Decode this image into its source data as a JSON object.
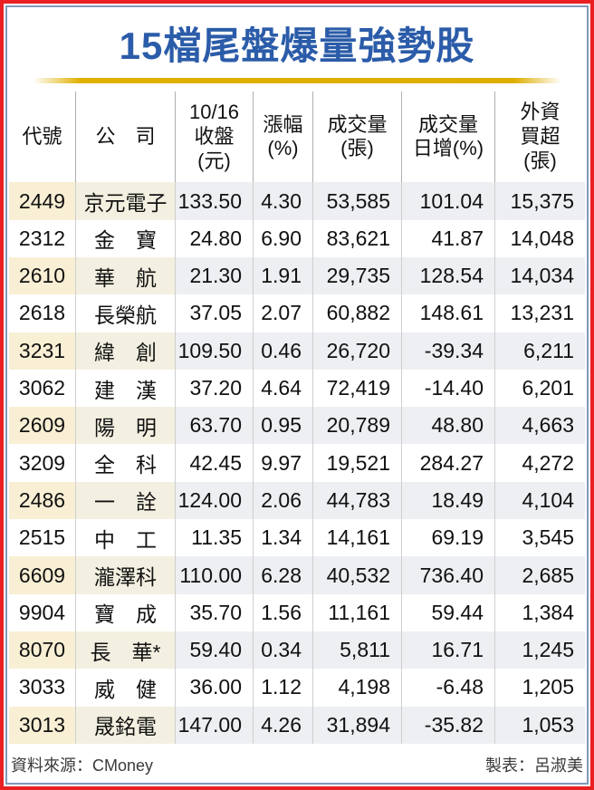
{
  "title": "15檔尾盤爆量強勢股",
  "colors": {
    "title_blue": "#2B5CA9",
    "frame_red": "#EA1F21",
    "frame_inner_blue": "#8298BA",
    "rule_gold": "#E0B000",
    "odd_row_code_cream": "#F8EFD4",
    "odd_row_company_cream": "#F4F0E1",
    "odd_row_numeric_grey": "#EDEFF2"
  },
  "table": {
    "columns": [
      {
        "id": "code",
        "label": "代號"
      },
      {
        "id": "company",
        "label": "公　司"
      },
      {
        "id": "close",
        "label": "10/16\n收盤\n(元)"
      },
      {
        "id": "change-pct",
        "label": "漲幅\n(%)"
      },
      {
        "id": "volume",
        "label": "成交量\n(張)"
      },
      {
        "id": "volume-gain-pct",
        "label": "成交量\n日增(%)"
      },
      {
        "id": "foreign-buy",
        "label": "外資\n買超\n(張)"
      }
    ],
    "rows": [
      [
        "2449",
        "京元電子",
        "133.50",
        "4.30",
        "53,585",
        "101.04",
        "15,375"
      ],
      [
        "2312",
        "金　寶",
        "24.80",
        "6.90",
        "83,621",
        "41.87",
        "14,048"
      ],
      [
        "2610",
        "華　航",
        "21.30",
        "1.91",
        "29,735",
        "128.54",
        "14,034"
      ],
      [
        "2618",
        "長榮航",
        "37.05",
        "2.07",
        "60,882",
        "148.61",
        "13,231"
      ],
      [
        "3231",
        "緯　創",
        "109.50",
        "0.46",
        "26,720",
        "-39.34",
        "6,211"
      ],
      [
        "3062",
        "建　漢",
        "37.20",
        "4.64",
        "72,419",
        "-14.40",
        "6,201"
      ],
      [
        "2609",
        "陽　明",
        "63.70",
        "0.95",
        "20,789",
        "48.80",
        "4,663"
      ],
      [
        "3209",
        "全　科",
        "42.45",
        "9.97",
        "19,521",
        "284.27",
        "4,272"
      ],
      [
        "2486",
        "一　詮",
        "124.00",
        "2.06",
        "44,783",
        "18.49",
        "4,104"
      ],
      [
        "2515",
        "中　工",
        "11.35",
        "1.34",
        "14,161",
        "69.19",
        "3,545"
      ],
      [
        "6609",
        "瀧澤科",
        "110.00",
        "6.28",
        "40,532",
        "736.40",
        "2,685"
      ],
      [
        "9904",
        "寶　成",
        "35.70",
        "1.56",
        "11,161",
        "59.44",
        "1,384"
      ],
      [
        "8070",
        "長　華*",
        "59.40",
        "0.34",
        "5,811",
        "16.71",
        "1,245"
      ],
      [
        "3033",
        "威　健",
        "36.00",
        "1.12",
        "4,198",
        "-6.48",
        "1,205"
      ],
      [
        "3013",
        "晟銘電",
        "147.00",
        "4.26",
        "31,894",
        "-35.82",
        "1,053"
      ]
    ]
  },
  "footer": {
    "source": "資料來源：CMoney",
    "credit": "製表：呂淑美"
  },
  "chart_data": {
    "type": "table",
    "title": "15檔尾盤爆量強勢股",
    "columns": [
      "代號",
      "公司",
      "10/16收盤(元)",
      "漲幅(%)",
      "成交量(張)",
      "成交量日增(%)",
      "外資買超(張)"
    ],
    "rows": [
      {
        "code": "2449",
        "company": "京元電子",
        "close": 133.5,
        "change_pct": 4.3,
        "volume": 53585,
        "volume_gain_pct": 101.04,
        "foreign_buy": 15375
      },
      {
        "code": "2312",
        "company": "金寶",
        "close": 24.8,
        "change_pct": 6.9,
        "volume": 83621,
        "volume_gain_pct": 41.87,
        "foreign_buy": 14048
      },
      {
        "code": "2610",
        "company": "華航",
        "close": 21.3,
        "change_pct": 1.91,
        "volume": 29735,
        "volume_gain_pct": 128.54,
        "foreign_buy": 14034
      },
      {
        "code": "2618",
        "company": "長榮航",
        "close": 37.05,
        "change_pct": 2.07,
        "volume": 60882,
        "volume_gain_pct": 148.61,
        "foreign_buy": 13231
      },
      {
        "code": "3231",
        "company": "緯創",
        "close": 109.5,
        "change_pct": 0.46,
        "volume": 26720,
        "volume_gain_pct": -39.34,
        "foreign_buy": 6211
      },
      {
        "code": "3062",
        "company": "建漢",
        "close": 37.2,
        "change_pct": 4.64,
        "volume": 72419,
        "volume_gain_pct": -14.4,
        "foreign_buy": 6201
      },
      {
        "code": "2609",
        "company": "陽明",
        "close": 63.7,
        "change_pct": 0.95,
        "volume": 20789,
        "volume_gain_pct": 48.8,
        "foreign_buy": 4663
      },
      {
        "code": "3209",
        "company": "全科",
        "close": 42.45,
        "change_pct": 9.97,
        "volume": 19521,
        "volume_gain_pct": 284.27,
        "foreign_buy": 4272
      },
      {
        "code": "2486",
        "company": "一詮",
        "close": 124.0,
        "change_pct": 2.06,
        "volume": 44783,
        "volume_gain_pct": 18.49,
        "foreign_buy": 4104
      },
      {
        "code": "2515",
        "company": "中工",
        "close": 11.35,
        "change_pct": 1.34,
        "volume": 14161,
        "volume_gain_pct": 69.19,
        "foreign_buy": 3545
      },
      {
        "code": "6609",
        "company": "瀧澤科",
        "close": 110.0,
        "change_pct": 6.28,
        "volume": 40532,
        "volume_gain_pct": 736.4,
        "foreign_buy": 2685
      },
      {
        "code": "9904",
        "company": "寶成",
        "close": 35.7,
        "change_pct": 1.56,
        "volume": 11161,
        "volume_gain_pct": 59.44,
        "foreign_buy": 1384
      },
      {
        "code": "8070",
        "company": "長華*",
        "close": 59.4,
        "change_pct": 0.34,
        "volume": 5811,
        "volume_gain_pct": 16.71,
        "foreign_buy": 1245
      },
      {
        "code": "3033",
        "company": "威健",
        "close": 36.0,
        "change_pct": 1.12,
        "volume": 4198,
        "volume_gain_pct": -6.48,
        "foreign_buy": 1205
      },
      {
        "code": "3013",
        "company": "晟銘電",
        "close": 147.0,
        "change_pct": 4.26,
        "volume": 31894,
        "volume_gain_pct": -35.82,
        "foreign_buy": 1053
      }
    ]
  }
}
